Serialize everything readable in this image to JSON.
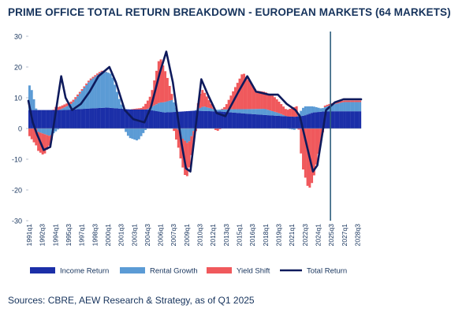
{
  "chart_data": {
    "type": "bar",
    "title": "PRIME OFFICE TOTAL RETURN BREAKDOWN - EUROPEAN MARKETS (64 MARKETS)",
    "ylim": [
      -30,
      30
    ],
    "y_ticks": [
      30,
      20,
      10,
      0,
      -10,
      -20,
      -30
    ],
    "x_tick_labels": [
      "1991q1",
      "1992q3",
      "1994q1",
      "1995q3",
      "1997q1",
      "1998q3",
      "2000q1",
      "2001q3",
      "2003q1",
      "2004q3",
      "2006q1",
      "2007q3",
      "2009q1",
      "2010q3",
      "2012q1",
      "2013q3",
      "2015q1",
      "2016q3",
      "2018q1",
      "2019q3",
      "2021q1",
      "2022q3",
      "2024q1",
      "2025q3",
      "2027q1",
      "2028q3"
    ],
    "legend": [
      "Income Return",
      "Rental Growth",
      "Yield Shift",
      "Total Return"
    ],
    "legend_position": "bottom",
    "forecast_marker": "2025q3",
    "colors": {
      "income": "#1b2fa8",
      "rental": "#5b9bd5",
      "yield": "#f0595c",
      "total": "#0e1a5c",
      "marker": "#2e5e7e",
      "axis_text": "#16335c"
    },
    "x_start": "1991q1",
    "x_end": "2029q1",
    "series": [
      {
        "name": "Income Return",
        "points": [
          [
            1991.0,
            6.0
          ],
          [
            1995.0,
            6.0
          ],
          [
            1998.0,
            6.5
          ],
          [
            2000.0,
            6.8
          ],
          [
            2002.5,
            6.2
          ],
          [
            2004.5,
            6.2
          ],
          [
            2006.5,
            5.2
          ],
          [
            2008.5,
            5.5
          ],
          [
            2010.0,
            5.8
          ],
          [
            2013.0,
            5.5
          ],
          [
            2016.0,
            4.8
          ],
          [
            2019.0,
            4.2
          ],
          [
            2021.5,
            3.8
          ],
          [
            2022.5,
            4.2
          ],
          [
            2023.5,
            5.2
          ],
          [
            2025.0,
            5.6
          ],
          [
            2029.0,
            5.6
          ]
        ]
      },
      {
        "name": "Rental Growth",
        "points": [
          [
            1991.0,
            8.0
          ],
          [
            1991.25,
            8.0
          ],
          [
            1992.0,
            -1.0
          ],
          [
            1993.5,
            -2.5
          ],
          [
            1994.5,
            0.0
          ],
          [
            1996.0,
            2.0
          ],
          [
            1998.0,
            9.0
          ],
          [
            1999.5,
            12.0
          ],
          [
            2000.5,
            11.0
          ],
          [
            2001.5,
            2.0
          ],
          [
            2002.5,
            -3.0
          ],
          [
            2003.5,
            -4.0
          ],
          [
            2004.5,
            0.0
          ],
          [
            2006.0,
            3.0
          ],
          [
            2007.5,
            4.0
          ],
          [
            2008.5,
            -3.0
          ],
          [
            2009.25,
            -5.0
          ],
          [
            2010.0,
            0.0
          ],
          [
            2011.0,
            1.5
          ],
          [
            2012.5,
            0.5
          ],
          [
            2014.0,
            1.0
          ],
          [
            2016.0,
            1.5
          ],
          [
            2018.0,
            2.0
          ],
          [
            2019.5,
            1.0
          ],
          [
            2020.5,
            0.0
          ],
          [
            2021.5,
            -0.5
          ],
          [
            2022.5,
            3.0
          ],
          [
            2023.5,
            2.0
          ],
          [
            2024.5,
            1.0
          ],
          [
            2025.5,
            2.0
          ],
          [
            2027.0,
            3.0
          ],
          [
            2029.0,
            3.0
          ]
        ]
      },
      {
        "name": "Yield Shift",
        "points": [
          [
            1991.0,
            -2.0
          ],
          [
            1992.0,
            -6.0
          ],
          [
            1992.75,
            -7.0
          ],
          [
            1993.5,
            -2.5
          ],
          [
            1994.0,
            1.0
          ],
          [
            1995.0,
            1.0
          ],
          [
            1997.0,
            0.5
          ],
          [
            1999.0,
            0.5
          ],
          [
            2000.0,
            0.0
          ],
          [
            2001.0,
            0.0
          ],
          [
            2002.5,
            0.0
          ],
          [
            2004.0,
            0.5
          ],
          [
            2005.0,
            4.0
          ],
          [
            2006.0,
            15.0
          ],
          [
            2006.75,
            9.0
          ],
          [
            2008.0,
            -5.0
          ],
          [
            2009.0,
            -12.0
          ],
          [
            2009.75,
            -5.0
          ],
          [
            2010.75,
            6.0
          ],
          [
            2011.5,
            3.0
          ],
          [
            2012.5,
            -1.0
          ],
          [
            2013.5,
            1.0
          ],
          [
            2015.5,
            12.0
          ],
          [
            2017.0,
            6.0
          ],
          [
            2019.0,
            5.0
          ],
          [
            2020.5,
            2.0
          ],
          [
            2021.25,
            3.0
          ],
          [
            2021.75,
            3.5
          ],
          [
            2022.25,
            -12.0
          ],
          [
            2023.0,
            -20.0
          ],
          [
            2023.5,
            -17.0
          ],
          [
            2024.0,
            -10.0
          ],
          [
            2024.75,
            0.5
          ],
          [
            2026.0,
            0.5
          ],
          [
            2029.0,
            0.5
          ]
        ]
      },
      {
        "name": "Total Return",
        "points": [
          [
            1991.0,
            9.0
          ],
          [
            1991.5,
            2.0
          ],
          [
            1992.0,
            -2.0
          ],
          [
            1992.75,
            -7.0
          ],
          [
            1993.5,
            -6.0
          ],
          [
            1994.0,
            3.0
          ],
          [
            1994.75,
            17.0
          ],
          [
            1995.25,
            10.0
          ],
          [
            1996.0,
            6.0
          ],
          [
            1997.0,
            8.0
          ],
          [
            1998.0,
            12.0
          ],
          [
            1999.0,
            17.0
          ],
          [
            2000.25,
            20.0
          ],
          [
            2001.0,
            15.0
          ],
          [
            2002.0,
            6.0
          ],
          [
            2003.0,
            3.0
          ],
          [
            2004.25,
            2.0
          ],
          [
            2005.0,
            7.0
          ],
          [
            2006.0,
            18.0
          ],
          [
            2006.75,
            25.0
          ],
          [
            2007.5,
            15.0
          ],
          [
            2008.5,
            -5.0
          ],
          [
            2009.0,
            -13.0
          ],
          [
            2009.5,
            -14.0
          ],
          [
            2010.0,
            -2.0
          ],
          [
            2010.75,
            16.0
          ],
          [
            2011.5,
            11.0
          ],
          [
            2012.5,
            5.0
          ],
          [
            2013.5,
            4.0
          ],
          [
            2015.0,
            12.0
          ],
          [
            2016.0,
            17.0
          ],
          [
            2017.0,
            12.0
          ],
          [
            2018.5,
            11.0
          ],
          [
            2019.5,
            11.0
          ],
          [
            2020.5,
            8.0
          ],
          [
            2021.5,
            6.0
          ],
          [
            2022.0,
            4.0
          ],
          [
            2022.75,
            -5.0
          ],
          [
            2023.5,
            -14.0
          ],
          [
            2024.0,
            -12.0
          ],
          [
            2025.0,
            6.0
          ],
          [
            2026.0,
            8.5
          ],
          [
            2027.0,
            9.5
          ],
          [
            2029.0,
            9.5
          ]
        ]
      }
    ]
  },
  "source": "Sources: CBRE, AEW Research & Strategy, as of Q1 2025"
}
